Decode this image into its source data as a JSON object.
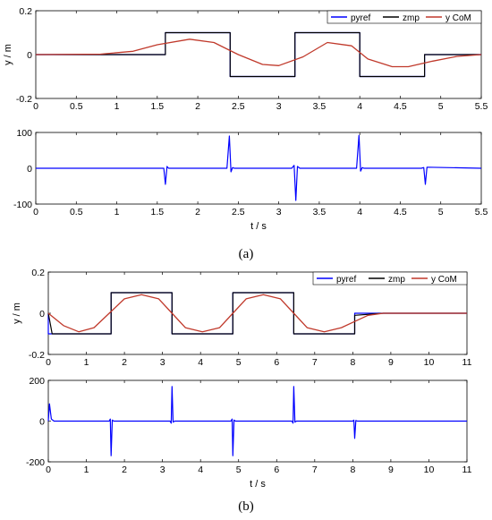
{
  "chart_data": [
    {
      "panel": "a",
      "caption": "(a)",
      "type": "line",
      "ylabel": "y / m",
      "xlabel": "",
      "xlim": [
        0,
        5.5
      ],
      "ylim": [
        -0.2,
        0.2
      ],
      "xticks": [
        "0",
        "0.5",
        "1",
        "1.5",
        "2",
        "2.5",
        "3",
        "3.5",
        "4",
        "4.5",
        "5",
        "5.5"
      ],
      "yticks": [
        "0.2",
        "0",
        "-0.2"
      ],
      "legend": "top-right",
      "series": [
        {
          "name": "pyref",
          "color": "#0000ff",
          "x": [
            0,
            1.6,
            1.6,
            2.4,
            2.4,
            3.2,
            3.2,
            4.0,
            4.0,
            4.8,
            4.8,
            5.5
          ],
          "y": [
            0,
            0,
            0.1,
            0.1,
            -0.1,
            -0.1,
            0.1,
            0.1,
            -0.1,
            -0.1,
            0,
            0
          ]
        },
        {
          "name": "zmp",
          "color": "#000000",
          "x": [
            0,
            1.6,
            1.6,
            2.4,
            2.4,
            3.2,
            3.2,
            4.0,
            4.0,
            4.8,
            4.8,
            5.5
          ],
          "y": [
            0,
            0,
            0.1,
            0.1,
            -0.1,
            -0.1,
            0.1,
            0.1,
            -0.1,
            -0.1,
            0,
            0
          ]
        },
        {
          "name": "y CoM",
          "color": "#c0392b",
          "x": [
            0,
            0.8,
            1.2,
            1.5,
            1.9,
            2.2,
            2.5,
            2.8,
            3.0,
            3.3,
            3.6,
            3.9,
            4.1,
            4.4,
            4.6,
            4.9,
            5.2,
            5.5
          ],
          "y": [
            0,
            0.002,
            0.015,
            0.045,
            0.07,
            0.055,
            0.0,
            -0.045,
            -0.05,
            -0.01,
            0.055,
            0.04,
            -0.02,
            -0.055,
            -0.055,
            -0.03,
            -0.008,
            0
          ]
        }
      ]
    },
    {
      "panel": "a-lower",
      "type": "line",
      "xlabel": "t / s",
      "ylabel": "",
      "xlim": [
        0,
        5.5
      ],
      "ylim": [
        -100,
        100
      ],
      "xticks": [
        "0",
        "0.5",
        "1",
        "1.5",
        "2",
        "2.5",
        "3",
        "3.5",
        "4",
        "4.5",
        "5",
        "5.5"
      ],
      "yticks": [
        "100",
        "0",
        "-100"
      ],
      "series": [
        {
          "name": "",
          "color": "#0000ff",
          "x": [
            0,
            1.58,
            1.6,
            1.62,
            1.64,
            2.36,
            2.39,
            2.41,
            2.43,
            2.45,
            3.16,
            3.19,
            3.21,
            3.23,
            3.26,
            3.96,
            3.99,
            4.01,
            4.03,
            4.05,
            4.76,
            4.79,
            4.81,
            4.83,
            5.5
          ],
          "y": [
            0,
            0,
            -45,
            5,
            0,
            0,
            90,
            -10,
            2,
            0,
            0,
            8,
            -90,
            5,
            0,
            0,
            92,
            -8,
            2,
            0,
            0,
            2,
            -45,
            3,
            0
          ]
        }
      ]
    },
    {
      "panel": "b",
      "caption": "(b)",
      "type": "line",
      "ylabel": "y / m",
      "xlabel": "",
      "xlim": [
        0,
        11
      ],
      "ylim": [
        -0.2,
        0.2
      ],
      "xticks": [
        "0",
        "1",
        "2",
        "3",
        "4",
        "5",
        "6",
        "7",
        "8",
        "9",
        "10",
        "11"
      ],
      "yticks": [
        "0.2",
        "0",
        "-0.2"
      ],
      "legend": "top-right",
      "series": [
        {
          "name": "pyref",
          "color": "#0000ff",
          "x": [
            0,
            0,
            1.65,
            1.65,
            3.25,
            3.25,
            4.85,
            4.85,
            6.45,
            6.45,
            8.05,
            8.05,
            11
          ],
          "y": [
            0,
            -0.1,
            -0.1,
            0.1,
            0.1,
            -0.1,
            -0.1,
            0.1,
            0.1,
            -0.1,
            -0.1,
            0,
            0
          ]
        },
        {
          "name": "zmp",
          "color": "#000000",
          "x": [
            0,
            0.1,
            1.65,
            1.65,
            3.25,
            3.25,
            4.85,
            4.85,
            6.45,
            6.45,
            8.05,
            8.05,
            8.8,
            11
          ],
          "y": [
            0,
            -0.1,
            -0.1,
            0.1,
            0.1,
            -0.1,
            -0.1,
            0.1,
            0.1,
            -0.1,
            -0.1,
            -0.01,
            0,
            0
          ]
        },
        {
          "name": "y CoM",
          "color": "#c0392b",
          "x": [
            0,
            0.4,
            0.8,
            1.2,
            1.6,
            2.0,
            2.45,
            2.9,
            3.25,
            3.6,
            4.05,
            4.5,
            4.85,
            5.2,
            5.65,
            6.1,
            6.45,
            6.8,
            7.25,
            7.7,
            8.05,
            8.4,
            8.8,
            11
          ],
          "y": [
            0,
            -0.06,
            -0.09,
            -0.07,
            0.0,
            0.07,
            0.09,
            0.07,
            0.0,
            -0.07,
            -0.09,
            -0.07,
            0.0,
            0.07,
            0.09,
            0.07,
            0.0,
            -0.07,
            -0.09,
            -0.07,
            -0.04,
            -0.01,
            0,
            0
          ]
        }
      ]
    },
    {
      "panel": "b-lower",
      "type": "line",
      "xlabel": "t / s",
      "ylabel": "",
      "xlim": [
        0,
        11
      ],
      "ylim": [
        -200,
        200
      ],
      "xticks": [
        "0",
        "1",
        "2",
        "3",
        "4",
        "5",
        "6",
        "7",
        "8",
        "9",
        "10",
        "11"
      ],
      "yticks": [
        "200",
        "0",
        "-200"
      ],
      "series": [
        {
          "name": "",
          "color": "#0000ff",
          "x": [
            0,
            0.03,
            0.08,
            0.15,
            1.6,
            1.63,
            1.65,
            1.68,
            1.72,
            3.2,
            3.23,
            3.25,
            3.28,
            3.32,
            4.8,
            4.83,
            4.85,
            4.88,
            4.92,
            6.4,
            6.43,
            6.45,
            6.48,
            6.52,
            8.0,
            8.03,
            8.05,
            8.08,
            8.12,
            11
          ],
          "y": [
            0,
            85,
            10,
            0,
            0,
            10,
            -170,
            5,
            0,
            0,
            -10,
            170,
            -5,
            0,
            0,
            10,
            -170,
            5,
            0,
            0,
            -10,
            170,
            -5,
            0,
            0,
            5,
            -85,
            3,
            0,
            0
          ]
        }
      ]
    }
  ]
}
